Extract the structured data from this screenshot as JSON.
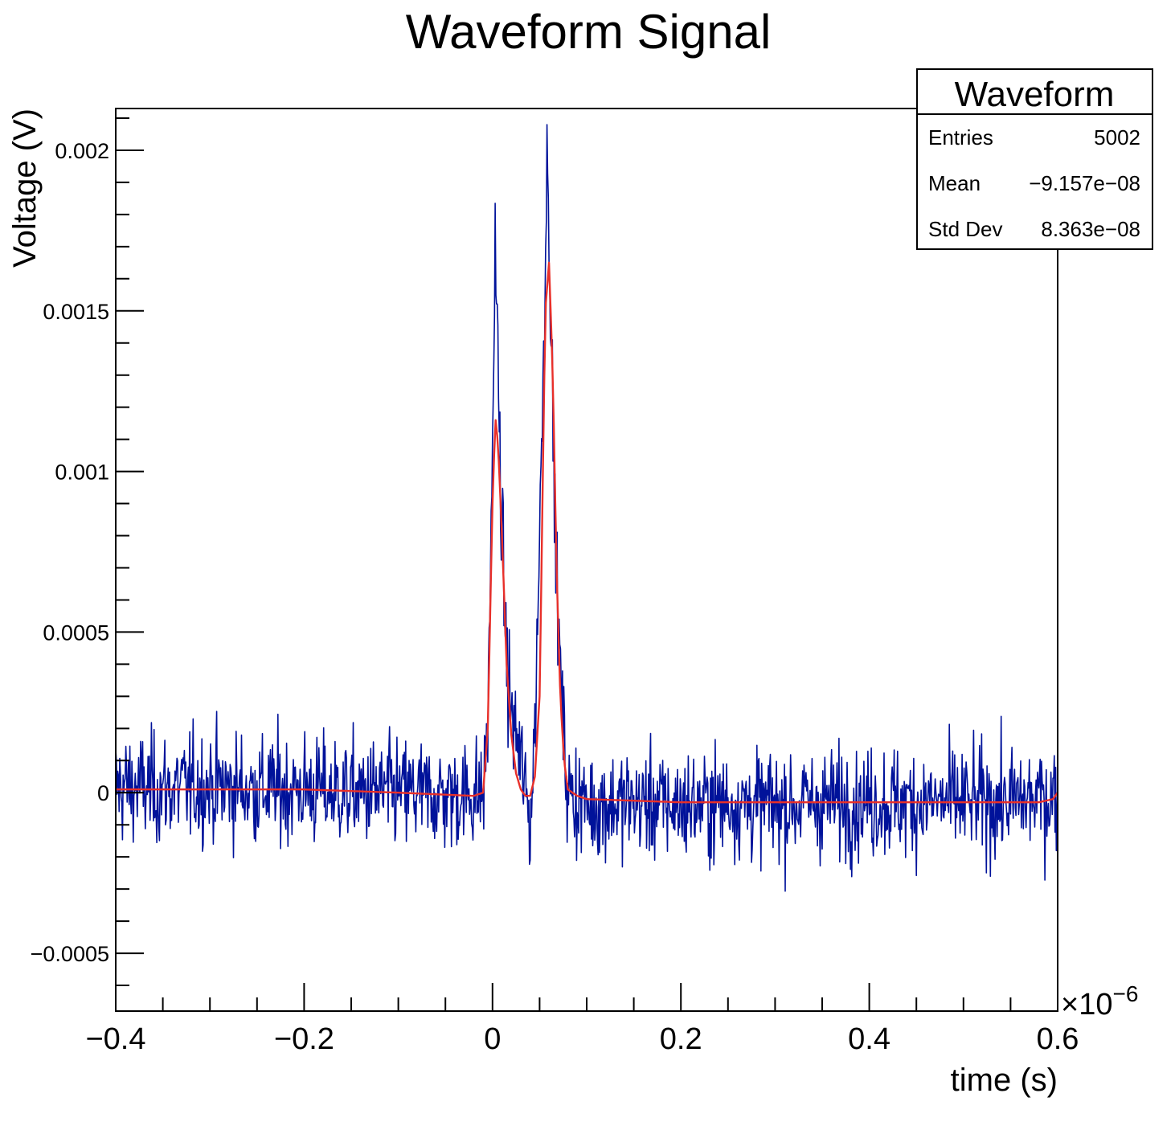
{
  "chart_data": {
    "type": "line",
    "title": "Waveform Signal",
    "xlabel": "time (s)",
    "ylabel": "Voltage (V)",
    "x_multiplier_label": "×10",
    "x_multiplier_exponent": "−6",
    "xlim": [
      -0.4,
      0.6
    ],
    "ylim": [
      -0.00068,
      0.00213
    ],
    "x_ticks": [
      {
        "value": -0.4,
        "label": "−0.4"
      },
      {
        "value": -0.2,
        "label": "−0.2"
      },
      {
        "value": 0,
        "label": "0"
      },
      {
        "value": 0.2,
        "label": "0.2"
      },
      {
        "value": 0.4,
        "label": "0.4"
      },
      {
        "value": 0.6,
        "label": "0.6"
      }
    ],
    "y_ticks": [
      {
        "value": -0.0005,
        "label": "−0.0005"
      },
      {
        "value": 0,
        "label": "0"
      },
      {
        "value": 0.0005,
        "label": "0.0005"
      },
      {
        "value": 0.001,
        "label": "0.001"
      },
      {
        "value": 0.0015,
        "label": "0.0015"
      },
      {
        "value": 0.002,
        "label": "0.002"
      }
    ],
    "grid": false,
    "stats_box": {
      "title": "Waveform",
      "rows": [
        {
          "label": "Entries",
          "value": "5002"
        },
        {
          "label": "Mean",
          "value": "−9.157e−08"
        },
        {
          "label": "Std Dev",
          "value": "8.363e−08"
        }
      ],
      "placement": "top-right"
    },
    "series": [
      {
        "color": "#00129a",
        "noise_amplitude": 0.00012,
        "x": [
          -0.4,
          -0.35,
          -0.3,
          -0.25,
          -0.2,
          -0.15,
          -0.1,
          -0.05,
          -0.01,
          -0.005,
          0.0,
          0.003,
          0.006,
          0.01,
          0.015,
          0.02,
          0.03,
          0.04,
          0.045,
          0.05,
          0.055,
          0.058,
          0.06,
          0.065,
          0.07,
          0.075,
          0.08,
          0.1,
          0.15,
          0.2,
          0.25,
          0.3,
          0.35,
          0.4,
          0.45,
          0.5,
          0.55,
          0.6
        ],
        "y": [
          2e-05,
          1e-05,
          2e-05,
          1e-05,
          1e-05,
          0.0,
          0.0,
          -1e-05,
          0.0,
          0.0002,
          0.0011,
          0.0017,
          0.0013,
          0.0008,
          0.0004,
          0.00025,
          0.0001,
          -0.0001,
          0.0002,
          0.0008,
          0.0015,
          0.002,
          0.0018,
          0.001,
          0.0005,
          0.0002,
          0.0,
          -4e-05,
          -3e-05,
          -4e-05,
          -3e-05,
          -4e-05,
          -3e-05,
          -3e-05,
          -3e-05,
          -3e-05,
          -3e-05,
          -1e-05
        ]
      },
      {
        "color": "#e8302a",
        "x": [
          -0.4,
          -0.3,
          -0.2,
          -0.1,
          -0.02,
          -0.01,
          -0.005,
          0.0,
          0.003,
          0.006,
          0.01,
          0.015,
          0.02,
          0.025,
          0.03,
          0.035,
          0.04,
          0.045,
          0.05,
          0.053,
          0.056,
          0.06,
          0.064,
          0.068,
          0.072,
          0.076,
          0.08,
          0.09,
          0.1,
          0.2,
          0.3,
          0.4,
          0.5,
          0.58,
          0.595,
          0.6
        ],
        "y": [
          1e-05,
          1e-05,
          1e-05,
          0.0,
          -1e-05,
          0.0,
          0.0002,
          0.0009,
          0.00117,
          0.00108,
          0.0008,
          0.0004,
          0.00018,
          6e-05,
          1e-05,
          -1e-05,
          -1e-05,
          5e-05,
          0.0003,
          0.0009,
          0.0015,
          0.00165,
          0.0013,
          0.0007,
          0.0003,
          0.0001,
          1e-05,
          -1e-05,
          -2e-05,
          -3e-05,
          -3e-05,
          -3e-05,
          -3e-05,
          -3e-05,
          -2e-05,
          0.0
        ]
      }
    ]
  }
}
